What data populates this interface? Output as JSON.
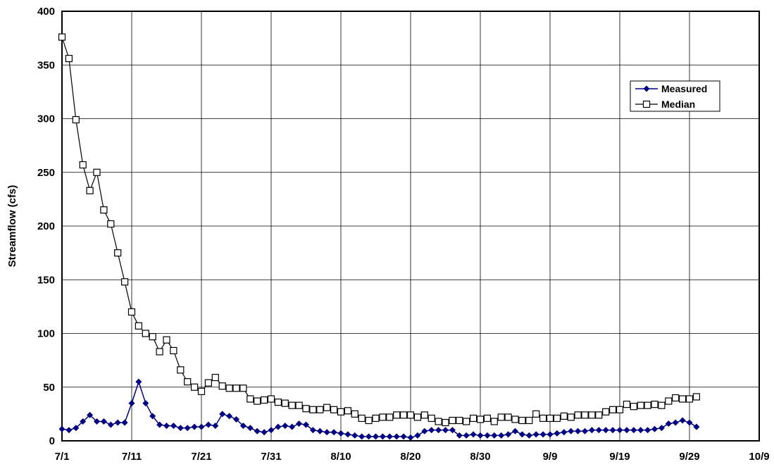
{
  "chart_data": {
    "type": "line",
    "title": "",
    "xlabel": "",
    "ylabel": "Streamflow (cfs)",
    "ylim": [
      0,
      400
    ],
    "yticks": [
      "0",
      "50",
      "100",
      "150",
      "200",
      "250",
      "300",
      "350",
      "400"
    ],
    "xticks": [
      "7/1",
      "7/11",
      "7/21",
      "7/31",
      "8/10",
      "8/20",
      "8/30",
      "9/9",
      "9/19",
      "9/29",
      "10/9"
    ],
    "xlim_days": [
      0,
      100
    ],
    "grid": true,
    "legend_position": "top-right",
    "series": [
      {
        "name": "Measured",
        "color": "#000080",
        "marker": "diamond",
        "values": [
          11,
          10,
          12,
          18,
          24,
          18,
          18,
          15,
          17,
          17,
          35,
          55,
          35,
          23,
          15,
          14,
          14,
          12,
          12,
          13,
          13,
          15,
          14,
          25,
          23,
          20,
          14,
          12,
          9,
          8,
          10,
          13,
          14,
          13,
          16,
          15,
          10,
          9,
          8,
          8,
          7,
          6,
          5,
          4,
          4,
          4,
          4,
          4,
          4,
          4,
          3,
          5,
          9,
          10,
          10,
          10,
          10,
          5,
          5,
          6,
          5,
          5,
          5,
          5,
          6,
          9,
          6,
          5,
          6,
          6,
          6,
          7,
          8,
          9,
          9,
          9,
          10,
          10,
          10,
          10,
          10,
          10,
          10,
          10,
          10,
          11,
          12,
          16,
          17,
          19,
          17,
          13
        ]
      },
      {
        "name": "Median",
        "color": "#000000",
        "marker": "square",
        "values": [
          376,
          356,
          299,
          257,
          233,
          250,
          215,
          202,
          175,
          148,
          120,
          107,
          100,
          97,
          83,
          94,
          84,
          66,
          55,
          50,
          46,
          54,
          59,
          51,
          49,
          49,
          49,
          39,
          37,
          38,
          39,
          36,
          35,
          33,
          33,
          30,
          29,
          29,
          31,
          29,
          27,
          28,
          25,
          21,
          19,
          21,
          22,
          22,
          24,
          24,
          24,
          22,
          24,
          21,
          18,
          17,
          19,
          19,
          18,
          21,
          20,
          21,
          18,
          22,
          22,
          20,
          19,
          19,
          25,
          21,
          21,
          21,
          23,
          22,
          24,
          24,
          24,
          24,
          27,
          29,
          29,
          34,
          32,
          33,
          33,
          34,
          33,
          37,
          40,
          39,
          39,
          41
        ]
      }
    ]
  }
}
